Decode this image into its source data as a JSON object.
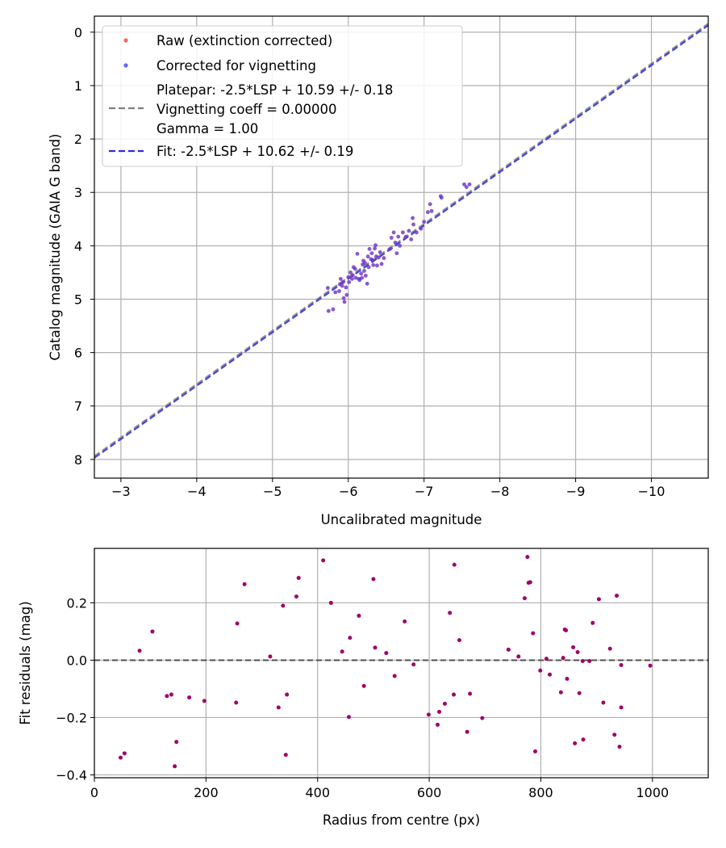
{
  "chart_data": [
    {
      "type": "scatter",
      "xlabel": "Uncalibrated magnitude",
      "ylabel": "Catalog magnitude (GAIA G band)",
      "xlim": [
        -2.65,
        -10.75
      ],
      "ylim": [
        8.35,
        -0.3
      ],
      "x_inverted": true,
      "y_inverted": true,
      "xticks": [
        -3,
        -4,
        -5,
        -6,
        -7,
        -8,
        -9,
        -10
      ],
      "xtick_labels": [
        "−3",
        "−4",
        "−5",
        "−6",
        "−7",
        "−8",
        "−9",
        "−10"
      ],
      "yticks": [
        0,
        1,
        2,
        3,
        4,
        5,
        6,
        7,
        8
      ],
      "ytick_labels": [
        "0",
        "1",
        "2",
        "3",
        "4",
        "5",
        "6",
        "7",
        "8"
      ],
      "grid": true,
      "legend_position": "top-left",
      "legend": {
        "raw": "Raw (extinction corrected)",
        "corrected": "Corrected for vignetting",
        "platepar_lines": [
          "Platepar: -2.5*LSP + 10.59 +/- 0.18",
          "Vignetting coeff = 0.00000",
          "Gamma = 1.00"
        ],
        "fit": "Fit: -2.5*LSP + 10.62 +/- 0.19"
      },
      "colors": {
        "raw": "#ff3b30",
        "corrected": "#3b3bff",
        "platepar_line": "#7f7f7f",
        "fit_line": "#2a2ae0"
      },
      "lines": [
        {
          "name": "Platepar: -2.5*LSP + 10.59 +/- 0.18",
          "offset": 10.59,
          "style": "dashed"
        },
        {
          "name": "Fit: -2.5*LSP + 10.62 +/- 0.19",
          "offset": 10.62,
          "style": "dashed"
        }
      ],
      "series": [
        {
          "name": "Raw (extinction corrected)",
          "points": [
            [
              -5.73,
              4.79
            ],
            [
              -5.74,
              5.22
            ],
            [
              -5.8,
              5.19
            ],
            [
              -5.83,
              4.87
            ],
            [
              -5.88,
              4.85
            ],
            [
              -5.89,
              4.72
            ],
            [
              -5.9,
              4.62
            ],
            [
              -5.92,
              4.75
            ],
            [
              -5.93,
              4.68
            ],
            [
              -5.94,
              4.98
            ],
            [
              -5.95,
              5.05
            ],
            [
              -5.97,
              4.78
            ],
            [
              -5.98,
              4.92
            ],
            [
              -6.0,
              4.59
            ],
            [
              -6.01,
              4.68
            ],
            [
              -6.03,
              4.5
            ],
            [
              -6.05,
              4.62
            ],
            [
              -6.06,
              4.55
            ],
            [
              -6.07,
              4.4
            ],
            [
              -6.09,
              4.43
            ],
            [
              -6.1,
              4.6
            ],
            [
              -6.12,
              4.15
            ],
            [
              -6.14,
              4.62
            ],
            [
              -6.15,
              4.64
            ],
            [
              -6.17,
              4.52
            ],
            [
              -6.18,
              4.6
            ],
            [
              -6.19,
              4.35
            ],
            [
              -6.2,
              4.28
            ],
            [
              -6.21,
              4.47
            ],
            [
              -6.22,
              4.32
            ],
            [
              -6.23,
              4.56
            ],
            [
              -6.25,
              4.71
            ],
            [
              -6.26,
              4.2
            ],
            [
              -6.27,
              4.4
            ],
            [
              -6.28,
              4.06
            ],
            [
              -6.3,
              4.25
            ],
            [
              -6.31,
              4.14
            ],
            [
              -6.32,
              4.27
            ],
            [
              -6.33,
              4.36
            ],
            [
              -6.35,
              4.05
            ],
            [
              -6.36,
              3.99
            ],
            [
              -6.37,
              4.2
            ],
            [
              -6.38,
              4.37
            ],
            [
              -6.4,
              4.22
            ],
            [
              -6.42,
              4.12
            ],
            [
              -6.44,
              4.34
            ],
            [
              -6.47,
              4.23
            ],
            [
              -6.55,
              4.06
            ],
            [
              -6.57,
              3.85
            ],
            [
              -6.6,
              3.75
            ],
            [
              -6.62,
              3.94
            ],
            [
              -6.64,
              4.14
            ],
            [
              -6.66,
              3.83
            ],
            [
              -6.68,
              4.0
            ],
            [
              -6.72,
              3.75
            ],
            [
              -6.76,
              3.83
            ],
            [
              -6.8,
              3.72
            ],
            [
              -6.83,
              3.88
            ],
            [
              -6.86,
              3.6
            ],
            [
              -6.85,
              3.48
            ],
            [
              -6.9,
              3.75
            ],
            [
              -6.96,
              3.68
            ],
            [
              -7.0,
              3.55
            ],
            [
              -7.05,
              3.37
            ],
            [
              -7.08,
              3.22
            ],
            [
              -7.1,
              3.35
            ],
            [
              -7.22,
              3.07
            ],
            [
              -7.23,
              3.1
            ],
            [
              -7.53,
              2.85
            ],
            [
              -7.56,
              2.9
            ],
            [
              -7.6,
              2.85
            ]
          ]
        },
        {
          "name": "Corrected for vignetting",
          "points": [
            [
              -5.73,
              4.79
            ],
            [
              -5.74,
              5.22
            ],
            [
              -5.8,
              5.19
            ],
            [
              -5.83,
              4.87
            ],
            [
              -5.88,
              4.85
            ],
            [
              -5.89,
              4.72
            ],
            [
              -5.9,
              4.62
            ],
            [
              -5.92,
              4.75
            ],
            [
              -5.93,
              4.68
            ],
            [
              -5.94,
              4.98
            ],
            [
              -5.95,
              5.05
            ],
            [
              -5.97,
              4.78
            ],
            [
              -5.98,
              4.92
            ],
            [
              -6.0,
              4.59
            ],
            [
              -6.01,
              4.68
            ],
            [
              -6.03,
              4.5
            ],
            [
              -6.05,
              4.62
            ],
            [
              -6.06,
              4.55
            ],
            [
              -6.07,
              4.4
            ],
            [
              -6.09,
              4.43
            ],
            [
              -6.1,
              4.6
            ],
            [
              -6.12,
              4.15
            ],
            [
              -6.14,
              4.62
            ],
            [
              -6.15,
              4.64
            ],
            [
              -6.17,
              4.52
            ],
            [
              -6.18,
              4.6
            ],
            [
              -6.19,
              4.35
            ],
            [
              -6.2,
              4.28
            ],
            [
              -6.21,
              4.47
            ],
            [
              -6.22,
              4.32
            ],
            [
              -6.23,
              4.56
            ],
            [
              -6.25,
              4.71
            ],
            [
              -6.26,
              4.2
            ],
            [
              -6.27,
              4.4
            ],
            [
              -6.28,
              4.06
            ],
            [
              -6.3,
              4.25
            ],
            [
              -6.31,
              4.14
            ],
            [
              -6.32,
              4.27
            ],
            [
              -6.33,
              4.36
            ],
            [
              -6.35,
              4.05
            ],
            [
              -6.36,
              3.99
            ],
            [
              -6.37,
              4.2
            ],
            [
              -6.38,
              4.37
            ],
            [
              -6.4,
              4.22
            ],
            [
              -6.42,
              4.12
            ],
            [
              -6.44,
              4.34
            ],
            [
              -6.47,
              4.23
            ],
            [
              -6.55,
              4.06
            ],
            [
              -6.57,
              3.85
            ],
            [
              -6.6,
              3.75
            ],
            [
              -6.62,
              3.94
            ],
            [
              -6.64,
              4.14
            ],
            [
              -6.66,
              3.83
            ],
            [
              -6.68,
              4.0
            ],
            [
              -6.72,
              3.75
            ],
            [
              -6.76,
              3.83
            ],
            [
              -6.8,
              3.72
            ],
            [
              -6.83,
              3.88
            ],
            [
              -6.86,
              3.6
            ],
            [
              -6.85,
              3.48
            ],
            [
              -6.9,
              3.75
            ],
            [
              -6.96,
              3.68
            ],
            [
              -7.0,
              3.55
            ],
            [
              -7.05,
              3.37
            ],
            [
              -7.08,
              3.22
            ],
            [
              -7.1,
              3.35
            ],
            [
              -7.22,
              3.07
            ],
            [
              -7.23,
              3.1
            ],
            [
              -7.53,
              2.85
            ],
            [
              -7.56,
              2.9
            ],
            [
              -7.6,
              2.85
            ]
          ]
        }
      ]
    },
    {
      "type": "scatter",
      "xlabel": "Radius from centre (px)",
      "ylabel": "Fit residuals (mag)",
      "xlim": [
        0,
        1100
      ],
      "ylim": [
        -0.41,
        0.39
      ],
      "xticks": [
        0,
        200,
        400,
        600,
        800,
        1000
      ],
      "xtick_labels": [
        "0",
        "200",
        "400",
        "600",
        "800",
        "1000"
      ],
      "yticks": [
        -0.4,
        -0.2,
        0.0,
        0.2
      ],
      "ytick_labels": [
        "−0.4",
        "−0.2",
        "0.0",
        "0.2"
      ],
      "grid": true,
      "zero_line": {
        "y": 0,
        "style": "dashed",
        "color": "#333333"
      },
      "colors": {
        "raw": "#ff3b30",
        "corrected": "#3b3bff",
        "overlap": "#a0006a"
      },
      "series": [
        {
          "name": "residuals",
          "points": [
            [
              47,
              -0.34
            ],
            [
              54,
              -0.325
            ],
            [
              81,
              0.033
            ],
            [
              104,
              0.1
            ],
            [
              130,
              -0.125
            ],
            [
              138,
              -0.12
            ],
            [
              144,
              -0.37
            ],
            [
              147,
              -0.285
            ],
            [
              170,
              -0.13
            ],
            [
              197,
              -0.142
            ],
            [
              254,
              -0.148
            ],
            [
              256,
              0.128
            ],
            [
              269,
              0.265
            ],
            [
              315,
              0.013
            ],
            [
              330,
              -0.165
            ],
            [
              338,
              0.19
            ],
            [
              343,
              -0.33
            ],
            [
              345,
              -0.12
            ],
            [
              362,
              0.222
            ],
            [
              366,
              0.287
            ],
            [
              410,
              0.348
            ],
            [
              424,
              0.2
            ],
            [
              444,
              0.03
            ],
            [
              456,
              -0.198
            ],
            [
              458,
              0.078
            ],
            [
              474,
              0.155
            ],
            [
              483,
              -0.09
            ],
            [
              500,
              0.283
            ],
            [
              503,
              0.044
            ],
            [
              523,
              0.025
            ],
            [
              538,
              -0.055
            ],
            [
              556,
              0.135
            ],
            [
              572,
              -0.015
            ],
            [
              599,
              -0.19
            ],
            [
              615,
              -0.225
            ],
            [
              618,
              -0.18
            ],
            [
              628,
              -0.152
            ],
            [
              637,
              0.165
            ],
            [
              644,
              -0.12
            ],
            [
              645,
              0.333
            ],
            [
              654,
              0.07
            ],
            [
              668,
              -0.25
            ],
            [
              673,
              -0.117
            ],
            [
              695,
              -0.202
            ],
            [
              742,
              0.037
            ],
            [
              760,
              0.013
            ],
            [
              771,
              0.216
            ],
            [
              776,
              0.36
            ],
            [
              778,
              0.27
            ],
            [
              781,
              0.272
            ],
            [
              786,
              0.094
            ],
            [
              790,
              -0.318
            ],
            [
              799,
              -0.036
            ],
            [
              810,
              0.005
            ],
            [
              816,
              -0.05
            ],
            [
              836,
              -0.112
            ],
            [
              840,
              0.008
            ],
            [
              843,
              0.107
            ],
            [
              845,
              0.104
            ],
            [
              847,
              -0.065
            ],
            [
              858,
              0.045
            ],
            [
              861,
              -0.29
            ],
            [
              866,
              0.028
            ],
            [
              869,
              -0.115
            ],
            [
              875,
              -0.003
            ],
            [
              876,
              -0.277
            ],
            [
              887,
              -0.003
            ],
            [
              893,
              0.13
            ],
            [
              904,
              0.213
            ],
            [
              912,
              -0.148
            ],
            [
              924,
              0.04
            ],
            [
              932,
              -0.26
            ],
            [
              936,
              0.225
            ],
            [
              941,
              -0.302
            ],
            [
              944,
              -0.017
            ],
            [
              944,
              -0.165
            ],
            [
              996,
              -0.019
            ]
          ]
        }
      ]
    }
  ]
}
